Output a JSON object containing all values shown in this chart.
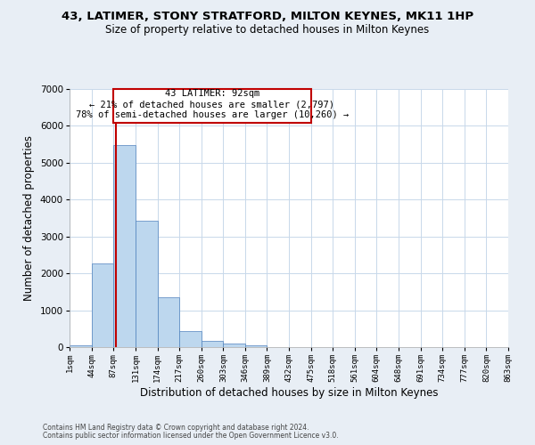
{
  "title": "43, LATIMER, STONY STRATFORD, MILTON KEYNES, MK11 1HP",
  "subtitle": "Size of property relative to detached houses in Milton Keynes",
  "xlabel": "Distribution of detached houses by size in Milton Keynes",
  "ylabel": "Number of detached properties",
  "footnote1": "Contains HM Land Registry data © Crown copyright and database right 2024.",
  "footnote2": "Contains public sector information licensed under the Open Government Licence v3.0.",
  "annotation_title": "43 LATIMER: 92sqm",
  "annotation_line1": "← 21% of detached houses are smaller (2,797)",
  "annotation_line2": "78% of semi-detached houses are larger (10,260) →",
  "property_sqm": 92,
  "bar_edges": [
    1,
    44,
    87,
    131,
    174,
    217,
    260,
    303,
    346,
    389,
    432,
    475,
    518,
    561,
    604,
    648,
    691,
    734,
    777,
    820,
    863
  ],
  "bar_heights": [
    60,
    2270,
    5470,
    3420,
    1340,
    440,
    160,
    90,
    50,
    0,
    0,
    0,
    0,
    0,
    0,
    0,
    0,
    0,
    0,
    0
  ],
  "bar_color": "#bdd7ee",
  "bar_edge_color": "#4f81bd",
  "vline_color": "#c00000",
  "vline_x": 92,
  "annotation_box_color": "#c00000",
  "annotation_box_fill": "#ffffff",
  "ylim": [
    0,
    7000
  ],
  "yticks": [
    0,
    1000,
    2000,
    3000,
    4000,
    5000,
    6000,
    7000
  ],
  "grid_color": "#c8d8ea",
  "background_color": "#e8eef5",
  "plot_background": "#ffffff",
  "tick_labels": [
    "1sqm",
    "44sqm",
    "87sqm",
    "131sqm",
    "174sqm",
    "217sqm",
    "260sqm",
    "303sqm",
    "346sqm",
    "389sqm",
    "432sqm",
    "475sqm",
    "518sqm",
    "561sqm",
    "604sqm",
    "648sqm",
    "691sqm",
    "734sqm",
    "777sqm",
    "820sqm",
    "863sqm"
  ]
}
